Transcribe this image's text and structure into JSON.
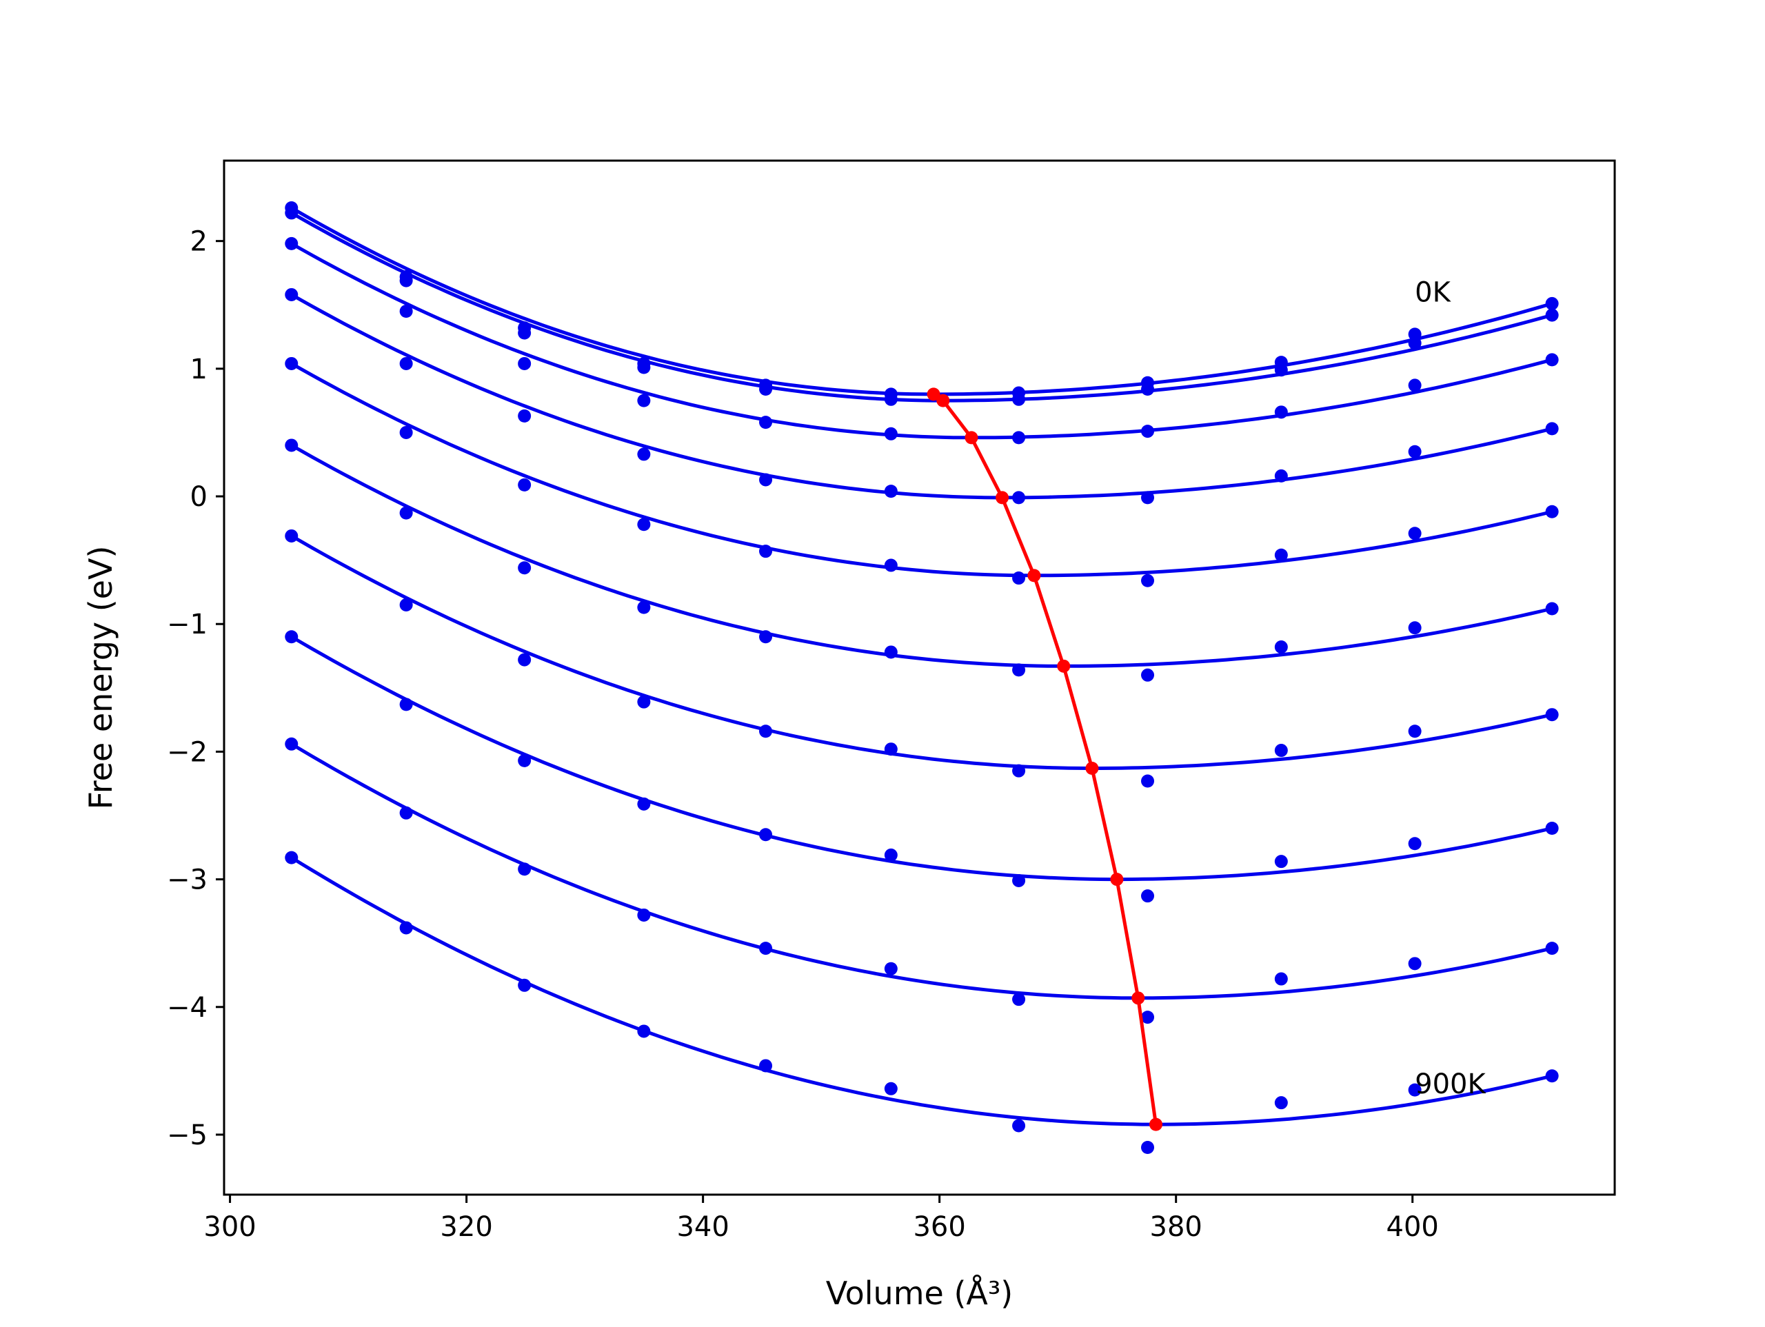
{
  "chart_data": {
    "type": "line",
    "title": "",
    "xlabel": "Volume (Å³)",
    "ylabel": "Free energy (eV)",
    "xlim": [
      299.5,
      417.1
    ],
    "ylim": [
      -5.47,
      2.63
    ],
    "xticks": [
      300,
      320,
      340,
      360,
      380,
      400
    ],
    "yticks": [
      2,
      1,
      0,
      -1,
      -2,
      -3,
      -4,
      -5
    ],
    "xtick_labels": [
      "300",
      "320",
      "340",
      "360",
      "380",
      "400"
    ],
    "ytick_labels": [
      "2",
      "1",
      "0",
      "−1",
      "−2",
      "−3",
      "−4",
      "−5"
    ],
    "grid": false,
    "series_labels": [
      {
        "text": "0K",
        "x": 400.2,
        "y": 1.6
      },
      {
        "text": "900K",
        "x": 400.2,
        "y": -4.6
      }
    ],
    "volumes": [
      305.2,
      314.9,
      324.9,
      335.0,
      345.3,
      355.9,
      366.7,
      377.6,
      388.9,
      400.2,
      411.8
    ],
    "series": [
      {
        "values": [
          2.26,
          1.72,
          1.32,
          1.04,
          0.87,
          0.8,
          0.81,
          0.89,
          1.05,
          1.27,
          1.51
        ],
        "fit_min_volume": 359.5,
        "fit_min_energy": 0.8
      },
      {
        "values": [
          2.22,
          1.69,
          1.28,
          1.01,
          0.84,
          0.76,
          0.76,
          0.84,
          0.99,
          1.2,
          1.42
        ],
        "fit_min_volume": 360.3,
        "fit_min_energy": 0.75
      },
      {
        "values": [
          1.98,
          1.45,
          1.04,
          0.75,
          0.58,
          0.49,
          0.46,
          0.51,
          0.66,
          0.87,
          1.07
        ],
        "fit_min_volume": 362.7,
        "fit_min_energy": 0.46
      },
      {
        "values": [
          1.58,
          1.04,
          0.63,
          0.33,
          0.13,
          0.04,
          -0.01,
          -0.01,
          0.16,
          0.35,
          0.53
        ],
        "fit_min_volume": 365.3,
        "fit_min_energy": -0.01
      },
      {
        "values": [
          1.04,
          0.5,
          0.09,
          -0.22,
          -0.43,
          -0.54,
          -0.64,
          -0.66,
          -0.46,
          -0.29,
          -0.12
        ],
        "fit_min_volume": 368.0,
        "fit_min_energy": -0.62
      },
      {
        "values": [
          0.4,
          -0.13,
          -0.56,
          -0.87,
          -1.1,
          -1.22,
          -1.36,
          -1.4,
          -1.18,
          -1.03,
          -0.88
        ],
        "fit_min_volume": 370.5,
        "fit_min_energy": -1.33
      },
      {
        "values": [
          -0.31,
          -0.85,
          -1.28,
          -1.61,
          -1.84,
          -1.98,
          -2.15,
          -2.23,
          -1.99,
          -1.84,
          -1.71
        ],
        "fit_min_volume": 372.9,
        "fit_min_energy": -2.13
      },
      {
        "values": [
          -1.1,
          -1.63,
          -2.07,
          -2.41,
          -2.65,
          -2.81,
          -3.01,
          -3.13,
          -2.86,
          -2.72,
          -2.6
        ],
        "fit_min_volume": 375.0,
        "fit_min_energy": -3.0
      },
      {
        "values": [
          -1.94,
          -2.48,
          -2.92,
          -3.28,
          -3.54,
          -3.7,
          -3.94,
          -4.08,
          -3.78,
          -3.66,
          -3.54
        ],
        "fit_min_volume": 376.8,
        "fit_min_energy": -3.93
      },
      {
        "values": [
          -2.83,
          -3.38,
          -3.83,
          -4.19,
          -4.46,
          -4.64,
          -4.93,
          -5.1,
          -4.75,
          -4.65,
          -4.54
        ],
        "fit_min_volume": 378.3,
        "fit_min_energy": -4.92
      }
    ],
    "colors": {
      "series": "#0000ee",
      "minimum_path": "#ff0000",
      "axes": "#000000"
    }
  }
}
